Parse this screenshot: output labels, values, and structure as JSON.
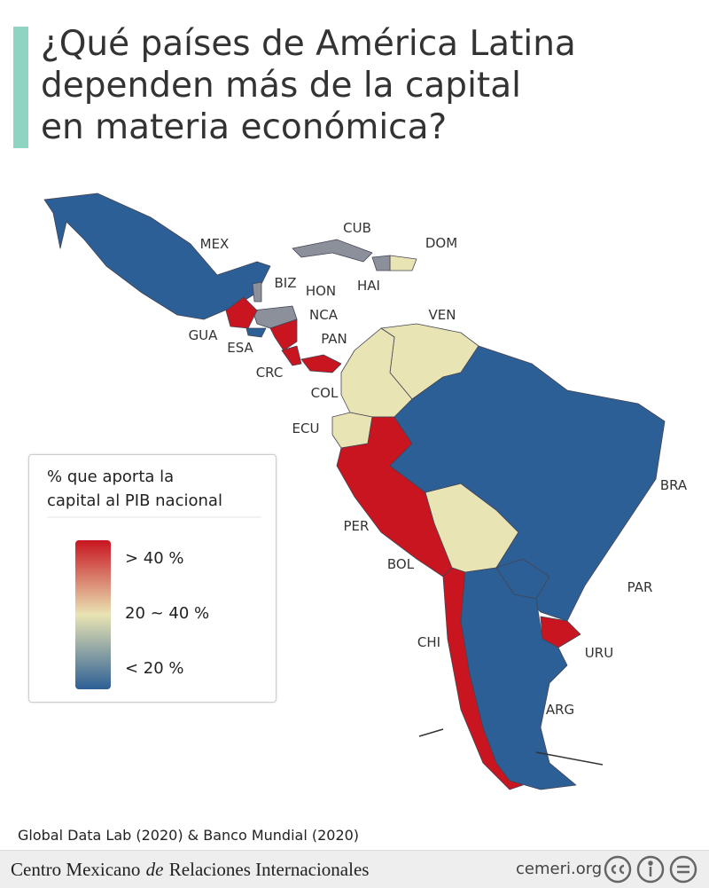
{
  "header": {
    "title_lines": [
      "¿Qué países de América Latina",
      "dependen más de la capital",
      "en materia económica?"
    ]
  },
  "map": {
    "countries": [
      {
        "label": "MEX",
        "color": "#2c5f95"
      },
      {
        "label": "CUB",
        "color": "#8b909b"
      },
      {
        "label": "DOM",
        "color": "#e9e4b3"
      },
      {
        "label": "HAI",
        "color": "#8b909b"
      },
      {
        "label": "BIZ",
        "color": "#8b909b"
      },
      {
        "label": "HON",
        "color": "#8b909b"
      },
      {
        "label": "GUA",
        "color": "#c8151f"
      },
      {
        "label": "ESA",
        "color": "#2c5f95"
      },
      {
        "label": "NCA",
        "color": "#c8151f"
      },
      {
        "label": "CRC",
        "color": "#c8151f"
      },
      {
        "label": "PAN",
        "color": "#c8151f"
      },
      {
        "label": "VEN",
        "color": "#e9e4b3"
      },
      {
        "label": "COL",
        "color": "#e9e4b3"
      },
      {
        "label": "ECU",
        "color": "#e9e4b3"
      },
      {
        "label": "PER",
        "color": "#c8151f"
      },
      {
        "label": "BOL",
        "color": "#e9e4b3"
      },
      {
        "label": "BRA",
        "color": "#2c5f95"
      },
      {
        "label": "PAR",
        "color": "#2c5f95"
      },
      {
        "label": "URU",
        "color": "#c8151f"
      },
      {
        "label": "CHI",
        "color": "#c8151f"
      },
      {
        "label": "ARG",
        "color": "#2c5f95"
      }
    ]
  },
  "legend": {
    "title_lines": [
      "% que aporta la",
      "capital al PIB nacional"
    ],
    "items": [
      {
        "label": "> 40 %",
        "color": "#c8151f"
      },
      {
        "label": "20 ~ 40 %",
        "color": "#e9e4b3"
      },
      {
        "label": "< 20 %",
        "color": "#2c5f95"
      }
    ]
  },
  "source": "Global Data Lab (2020) & Banco Mundial (2020)",
  "footer": {
    "organization": [
      "Centro Mexicano",
      "de",
      "Relaciones Internacionales"
    ],
    "site": "cemeri.org"
  }
}
